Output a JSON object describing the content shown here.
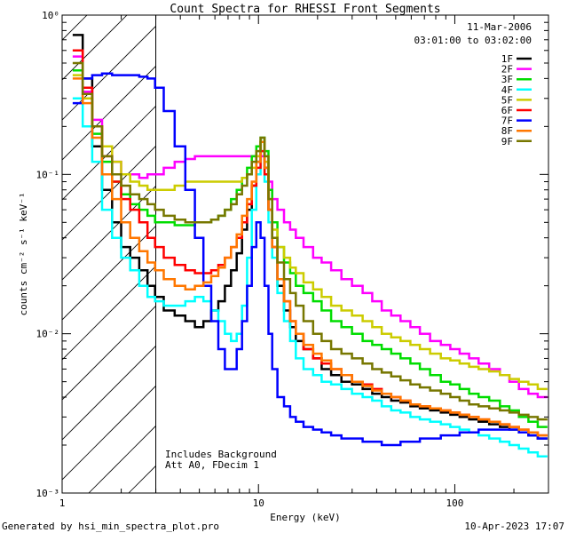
{
  "footer": {
    "left": "Generated by hsi_min_spectra_plot.pro",
    "right": "10-Apr-2023 17:07"
  },
  "chart_data": {
    "type": "line",
    "title": "Count Spectra for RHESSI Front Segments",
    "xlabel": "Energy (keV)",
    "ylabel": "counts cm⁻² s⁻¹ keV⁻¹",
    "xscale": "log",
    "yscale": "log",
    "xlim": [
      1,
      300
    ],
    "ylim": [
      0.001,
      1
    ],
    "xtick_labels": [
      {
        "value": 1,
        "label": "1"
      },
      {
        "value": 10,
        "label": "10"
      },
      {
        "value": 100,
        "label": "100"
      }
    ],
    "ytick_labels": [
      {
        "value": 1,
        "label": "10⁰"
      },
      {
        "value": 0.1,
        "label": "10⁻¹"
      },
      {
        "value": 0.01,
        "label": "10⁻²"
      },
      {
        "value": 0.001,
        "label": "10⁻³"
      }
    ],
    "date": "11-Mar-2006",
    "time_range": "03:01:00 to 03:02:00",
    "annotation_lines": [
      "Includes Background",
      "Att A0, FDecim 1"
    ],
    "attenuator_cutoff_keV": 3,
    "hatched_region": [
      1,
      3
    ],
    "x": [
      1.2,
      1.35,
      1.5,
      1.7,
      1.9,
      2.1,
      2.35,
      2.6,
      2.85,
      3.1,
      3.5,
      4,
      4.5,
      5,
      5.5,
      6,
      6.5,
      7,
      7.5,
      8,
      8.5,
      9,
      9.5,
      10,
      10.5,
      11,
      11.5,
      12,
      13,
      14,
      15,
      16,
      18,
      20,
      22,
      25,
      28,
      32,
      36,
      40,
      45,
      50,
      56,
      63,
      70,
      80,
      90,
      100,
      112,
      125,
      140,
      160,
      180,
      200,
      225,
      250,
      280
    ],
    "series": [
      {
        "name": "1F",
        "color": "#000000",
        "values": [
          0.75,
          0.4,
          0.15,
          0.08,
          0.05,
          0.035,
          0.03,
          0.025,
          0.02,
          0.017,
          0.014,
          0.013,
          0.012,
          0.011,
          0.012,
          0.014,
          0.016,
          0.02,
          0.025,
          0.032,
          0.045,
          0.06,
          0.085,
          0.12,
          0.16,
          0.11,
          0.06,
          0.035,
          0.02,
          0.014,
          0.011,
          0.009,
          0.008,
          0.007,
          0.006,
          0.0055,
          0.005,
          0.0048,
          0.0045,
          0.0042,
          0.004,
          0.0038,
          0.0037,
          0.0035,
          0.0034,
          0.0033,
          0.0032,
          0.0031,
          0.003,
          0.0029,
          0.0028,
          0.0027,
          0.0026,
          0.0025,
          0.0024,
          0.0023,
          0.0022
        ]
      },
      {
        "name": "2F",
        "color": "#ff00ff",
        "values": [
          0.55,
          0.33,
          0.22,
          0.15,
          0.12,
          0.1,
          0.1,
          0.095,
          0.1,
          0.1,
          0.11,
          0.12,
          0.125,
          0.13,
          0.13,
          0.13,
          0.13,
          0.13,
          0.13,
          0.13,
          0.13,
          0.13,
          0.13,
          0.13,
          0.13,
          0.12,
          0.09,
          0.07,
          0.06,
          0.05,
          0.045,
          0.04,
          0.035,
          0.03,
          0.028,
          0.025,
          0.022,
          0.02,
          0.018,
          0.016,
          0.014,
          0.013,
          0.012,
          0.011,
          0.01,
          0.009,
          0.0085,
          0.008,
          0.0075,
          0.007,
          0.0065,
          0.006,
          0.0055,
          0.005,
          0.0045,
          0.0042,
          0.004
        ]
      },
      {
        "name": "3F",
        "color": "#00dd00",
        "values": [
          0.45,
          0.3,
          0.18,
          0.12,
          0.09,
          0.075,
          0.065,
          0.06,
          0.055,
          0.05,
          0.05,
          0.048,
          0.048,
          0.05,
          0.05,
          0.052,
          0.055,
          0.06,
          0.07,
          0.08,
          0.095,
          0.11,
          0.13,
          0.15,
          0.17,
          0.14,
          0.08,
          0.05,
          0.035,
          0.028,
          0.024,
          0.02,
          0.018,
          0.016,
          0.014,
          0.012,
          0.011,
          0.01,
          0.009,
          0.0085,
          0.008,
          0.0075,
          0.007,
          0.0065,
          0.006,
          0.0055,
          0.005,
          0.0048,
          0.0045,
          0.0042,
          0.004,
          0.0038,
          0.0035,
          0.0033,
          0.003,
          0.0028,
          0.0026
        ]
      },
      {
        "name": "4F",
        "color": "#00ffff",
        "values": [
          0.3,
          0.2,
          0.12,
          0.06,
          0.04,
          0.03,
          0.025,
          0.02,
          0.017,
          0.016,
          0.015,
          0.015,
          0.016,
          0.017,
          0.016,
          0.014,
          0.012,
          0.01,
          0.009,
          0.01,
          0.015,
          0.03,
          0.06,
          0.1,
          0.14,
          0.09,
          0.05,
          0.03,
          0.018,
          0.012,
          0.009,
          0.007,
          0.006,
          0.0055,
          0.005,
          0.0048,
          0.0045,
          0.0042,
          0.004,
          0.0038,
          0.0035,
          0.0033,
          0.0032,
          0.003,
          0.0029,
          0.0028,
          0.0027,
          0.0026,
          0.0025,
          0.0024,
          0.0023,
          0.0022,
          0.0021,
          0.002,
          0.0019,
          0.0018,
          0.0017
        ]
      },
      {
        "name": "5F",
        "color": "#cccc00",
        "values": [
          0.42,
          0.3,
          0.2,
          0.15,
          0.12,
          0.1,
          0.09,
          0.085,
          0.08,
          0.08,
          0.08,
          0.085,
          0.09,
          0.09,
          0.09,
          0.09,
          0.09,
          0.09,
          0.09,
          0.09,
          0.095,
          0.1,
          0.11,
          0.13,
          0.16,
          0.12,
          0.07,
          0.045,
          0.035,
          0.03,
          0.026,
          0.024,
          0.021,
          0.019,
          0.017,
          0.015,
          0.014,
          0.013,
          0.012,
          0.011,
          0.01,
          0.0095,
          0.009,
          0.0085,
          0.008,
          0.0075,
          0.007,
          0.0068,
          0.0065,
          0.0062,
          0.006,
          0.0058,
          0.0055,
          0.0052,
          0.005,
          0.0048,
          0.0045
        ]
      },
      {
        "name": "6F",
        "color": "#ff0000",
        "values": [
          0.6,
          0.35,
          0.2,
          0.13,
          0.09,
          0.07,
          0.06,
          0.05,
          0.04,
          0.035,
          0.03,
          0.027,
          0.025,
          0.024,
          0.024,
          0.025,
          0.027,
          0.03,
          0.035,
          0.04,
          0.05,
          0.065,
          0.085,
          0.11,
          0.14,
          0.1,
          0.06,
          0.035,
          0.022,
          0.016,
          0.012,
          0.01,
          0.008,
          0.007,
          0.0065,
          0.006,
          0.0055,
          0.005,
          0.0048,
          0.0045,
          0.0042,
          0.004,
          0.0038,
          0.0036,
          0.0035,
          0.0034,
          0.0033,
          0.0032,
          0.0031,
          0.003,
          0.0029,
          0.0028,
          0.0027,
          0.0026,
          0.0025,
          0.0024,
          0.0023
        ]
      },
      {
        "name": "7F",
        "color": "#0000ff",
        "values": [
          0.28,
          0.4,
          0.42,
          0.43,
          0.42,
          0.42,
          0.42,
          0.41,
          0.4,
          0.35,
          0.25,
          0.15,
          0.08,
          0.04,
          0.02,
          0.012,
          0.008,
          0.006,
          0.006,
          0.008,
          0.012,
          0.02,
          0.035,
          0.05,
          0.04,
          0.02,
          0.01,
          0.006,
          0.004,
          0.0035,
          0.003,
          0.0028,
          0.0026,
          0.0025,
          0.0024,
          0.0023,
          0.0022,
          0.0022,
          0.0021,
          0.0021,
          0.002,
          0.002,
          0.0021,
          0.0021,
          0.0022,
          0.0022,
          0.0023,
          0.0023,
          0.0024,
          0.0024,
          0.0025,
          0.0025,
          0.0025,
          0.0025,
          0.0024,
          0.0023,
          0.0022
        ]
      },
      {
        "name": "8F",
        "color": "#ff7700",
        "values": [
          0.4,
          0.28,
          0.17,
          0.1,
          0.07,
          0.05,
          0.04,
          0.033,
          0.028,
          0.025,
          0.022,
          0.02,
          0.019,
          0.02,
          0.021,
          0.023,
          0.026,
          0.03,
          0.035,
          0.042,
          0.055,
          0.07,
          0.09,
          0.12,
          0.16,
          0.11,
          0.06,
          0.035,
          0.022,
          0.016,
          0.012,
          0.01,
          0.0085,
          0.0075,
          0.0068,
          0.006,
          0.0055,
          0.005,
          0.0047,
          0.0044,
          0.0042,
          0.004,
          0.0038,
          0.0036,
          0.0035,
          0.0034,
          0.0033,
          0.0032,
          0.0031,
          0.003,
          0.0029,
          0.0028,
          0.0027,
          0.0026,
          0.0025,
          0.0024,
          0.0023
        ]
      },
      {
        "name": "9F",
        "color": "#777700",
        "values": [
          0.5,
          0.32,
          0.2,
          0.13,
          0.1,
          0.085,
          0.075,
          0.07,
          0.065,
          0.06,
          0.055,
          0.052,
          0.05,
          0.05,
          0.05,
          0.052,
          0.055,
          0.06,
          0.065,
          0.075,
          0.085,
          0.1,
          0.12,
          0.14,
          0.17,
          0.13,
          0.07,
          0.04,
          0.028,
          0.022,
          0.018,
          0.015,
          0.012,
          0.01,
          0.009,
          0.008,
          0.0075,
          0.007,
          0.0065,
          0.006,
          0.0057,
          0.0054,
          0.0051,
          0.0048,
          0.0046,
          0.0044,
          0.0042,
          0.004,
          0.0038,
          0.0036,
          0.0035,
          0.0034,
          0.0033,
          0.0032,
          0.0031,
          0.003,
          0.0029
        ]
      }
    ]
  }
}
